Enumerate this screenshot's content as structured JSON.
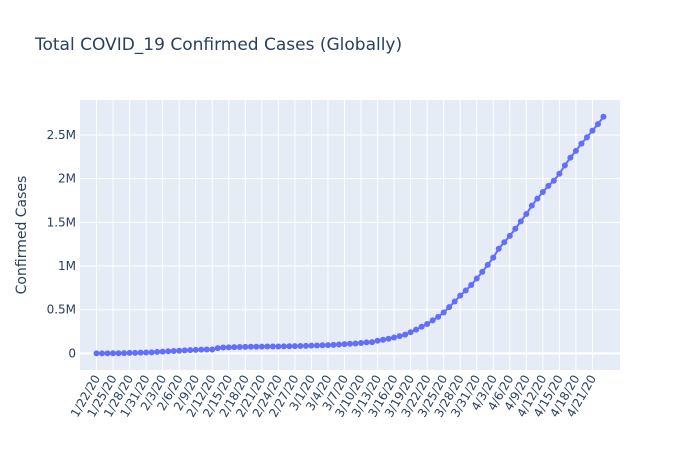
{
  "chart_data": {
    "type": "scatter",
    "mode": "lines+markers",
    "title": "Total COVID_19 Confirmed Cases (Globally)",
    "xlabel": "",
    "ylabel": "Confirmed Cases",
    "x_start": "1/22/20",
    "x_tick_labels": [
      "1/22/20",
      "1/25/20",
      "1/28/20",
      "1/31/20",
      "2/3/20",
      "2/6/20",
      "2/9/20",
      "2/12/20",
      "2/15/20",
      "2/18/20",
      "2/21/20",
      "2/24/20",
      "2/27/20",
      "3/1/20",
      "3/4/20",
      "3/7/20",
      "3/10/20",
      "3/13/20",
      "3/16/20",
      "3/19/20",
      "3/22/20",
      "3/25/20",
      "3/28/20",
      "3/31/20",
      "4/3/20",
      "4/6/20",
      "4/9/20",
      "4/12/20",
      "4/15/20",
      "4/18/20",
      "4/21/20"
    ],
    "y_ticks": [
      0,
      500000,
      1000000,
      1500000,
      2000000,
      2500000
    ],
    "y_tick_labels": [
      "0",
      "0.5M",
      "1M",
      "1.5M",
      "2M",
      "2.5M"
    ],
    "xlim": [
      "1/19/20",
      "4/26/20"
    ],
    "ylim": [
      -190000,
      2900000
    ],
    "grid": true,
    "colors": {
      "line": "#636efa",
      "plot_bg": "#e5ecf6",
      "grid": "#ffffff",
      "text": "#2a3f5f"
    },
    "series": [
      {
        "values": [
          555,
          654,
          941,
          1434,
          2118,
          2927,
          5578,
          6166,
          8234,
          9927,
          12038,
          16787,
          19881,
          23892,
          27635,
          30794,
          34391,
          37120,
          40150,
          42762,
          44802,
          45221,
          60368,
          66885,
          69030,
          71224,
          73258,
          75136,
          75639,
          76197,
          76819,
          78572,
          78958,
          79561,
          80406,
          81388,
          82746,
          84112,
          86011,
          88369,
          90306,
          92840,
          95120,
          97886,
          101801,
          105847,
          109821,
          113590,
          118620,
          125875,
          128343,
          145193,
          156097,
          167449,
          181546,
          197168,
          214915,
          242713,
          272167,
          304528,
          336953,
          378235,
          418045,
          467653,
          529591,
          593291,
          660706,
          720117,
          782365,
          857487,
          932605,
          1013466,
          1095917,
          1197405,
          1272115,
          1345101,
          1426096,
          1511104,
          1595350,
          1691719,
          1771514,
          1846680,
          1917319,
          1976192,
          2056054,
          2152437,
          2240190,
          2317758,
          2401378,
          2472259,
          2549294,
          2624176,
          2708885
        ]
      }
    ]
  }
}
